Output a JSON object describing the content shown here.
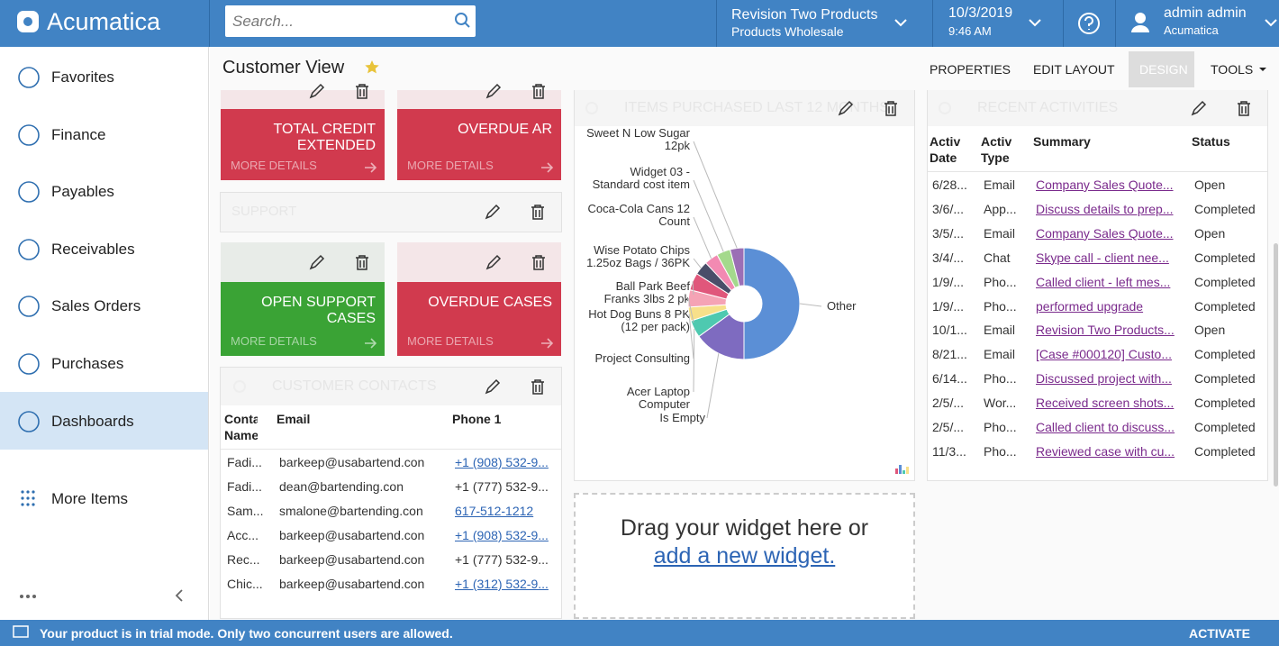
{
  "header": {
    "logo": "Acumatica",
    "search_placeholder": "Search...",
    "company": "Revision Two Products",
    "branch": "Products Wholesale",
    "date": "10/3/2019",
    "time": "9:46 AM",
    "user": "admin admin",
    "user_company": "Acumatica"
  },
  "sidebar": {
    "items": [
      "Favorites",
      "Finance",
      "Payables",
      "Receivables",
      "Sales Orders",
      "Purchases",
      "Dashboards"
    ],
    "active": 6,
    "more": "More Items"
  },
  "page": {
    "title": "Customer View",
    "actions": [
      "PROPERTIES",
      "EDIT LAYOUT",
      "DESIGN",
      "TOOLS"
    ]
  },
  "tiles": [
    {
      "label": "TOTAL CREDIT EXTENDED",
      "link": "MORE DETAILS",
      "color": "#d13a4e"
    },
    {
      "label": "OVERDUE AR",
      "link": "MORE DETAILS",
      "color": "#d13a4e"
    },
    {
      "label": "OPEN SUPPORT CASES",
      "link": "MORE DETAILS",
      "color": "#3aa335"
    },
    {
      "label": "OVERDUE CASES",
      "link": "MORE DETAILS",
      "color": "#d13a4e"
    }
  ],
  "support": {
    "title": "SUPPORT"
  },
  "contacts": {
    "title": "CUSTOMER CONTACTS",
    "columns": [
      "Conta Name",
      "Email",
      "Phone 1"
    ],
    "rows": [
      [
        "Fadi...",
        "barkeep@usabartend.con",
        "+1 (908) 532-9..."
      ],
      [
        "Fadi...",
        "dean@bartending.con",
        "+1 (777) 532-9..."
      ],
      [
        "Sam...",
        "smalone@bartending.con",
        "617-512-1212"
      ],
      [
        "Acc...",
        "barkeep@usabartend.con",
        "+1 (908) 532-9..."
      ],
      [
        "Rec...",
        "barkeep@usabartend.con",
        "+1 (777) 532-9..."
      ],
      [
        "Chic...",
        "barkeep@usabartend.con",
        "+1 (312) 532-9..."
      ]
    ],
    "phone_links": [
      true,
      false,
      true,
      true,
      false,
      true
    ]
  },
  "items_purchased": {
    "title": "ITEMS PURCHASED LAST 12 MONTHS",
    "chart": {
      "type": "pie",
      "categories": [
        "Other",
        "Is Empty",
        "Acer Laptop Computer",
        "Project Consulting",
        "Hot Dog Buns 8 PK (12 per pack)",
        "Ball Park Beef Franks 3lbs 2 pk",
        "Wise Potato Chips 1.25oz Bags / 36PK",
        "Coca-Cola Cans 12 Count",
        "Widget 03 - Standard cost item",
        "Sweet N Low Sugar 12pk"
      ],
      "values": [
        50,
        15,
        5,
        4,
        5,
        5,
        4,
        4,
        4,
        4
      ],
      "colors": [
        "#5b8fd6",
        "#7e6bc0",
        "#4ec9b0",
        "#f7e08a",
        "#f5a3b5",
        "#e0577b",
        "#4a4e69",
        "#f28ab2",
        "#a4d98c",
        "#9b6fb5"
      ]
    }
  },
  "drop_zone": {
    "text": "Drag your widget here or",
    "link": "add a new widget."
  },
  "activities": {
    "title": "RECENT ACTIVITIES",
    "columns": [
      "Activ Date",
      "Activ Type",
      "Summary",
      "Status"
    ],
    "rows": [
      [
        "6/28...",
        "Email",
        "Company Sales Quote...",
        "Open"
      ],
      [
        "3/6/...",
        "App...",
        "Discuss details to prep...",
        "Completed"
      ],
      [
        "3/5/...",
        "Email",
        "Company Sales Quote...",
        "Open"
      ],
      [
        "3/4/...",
        "Chat",
        "Skype call - client nee...",
        "Completed"
      ],
      [
        "1/9/...",
        "Pho...",
        "Called client - left mes...",
        "Completed"
      ],
      [
        "1/9/...",
        "Pho...",
        "performed upgrade",
        "Completed"
      ],
      [
        "10/1...",
        "Email",
        "Revision Two Products...",
        "Open"
      ],
      [
        "8/21...",
        "Email",
        "[Case #000120] Custo...",
        "Completed"
      ],
      [
        "6/14...",
        "Pho...",
        "Discussed project with...",
        "Completed"
      ],
      [
        "2/5/...",
        "Wor...",
        "Received screen shots...",
        "Completed"
      ],
      [
        "2/5/...",
        "Pho...",
        "Called client to discuss...",
        "Completed"
      ],
      [
        "11/3...",
        "Pho...",
        "Reviewed case with cu...",
        "Completed"
      ]
    ]
  },
  "footer": {
    "message": "Your product is in trial mode. Only two concurrent users are allowed.",
    "action": "ACTIVATE"
  }
}
